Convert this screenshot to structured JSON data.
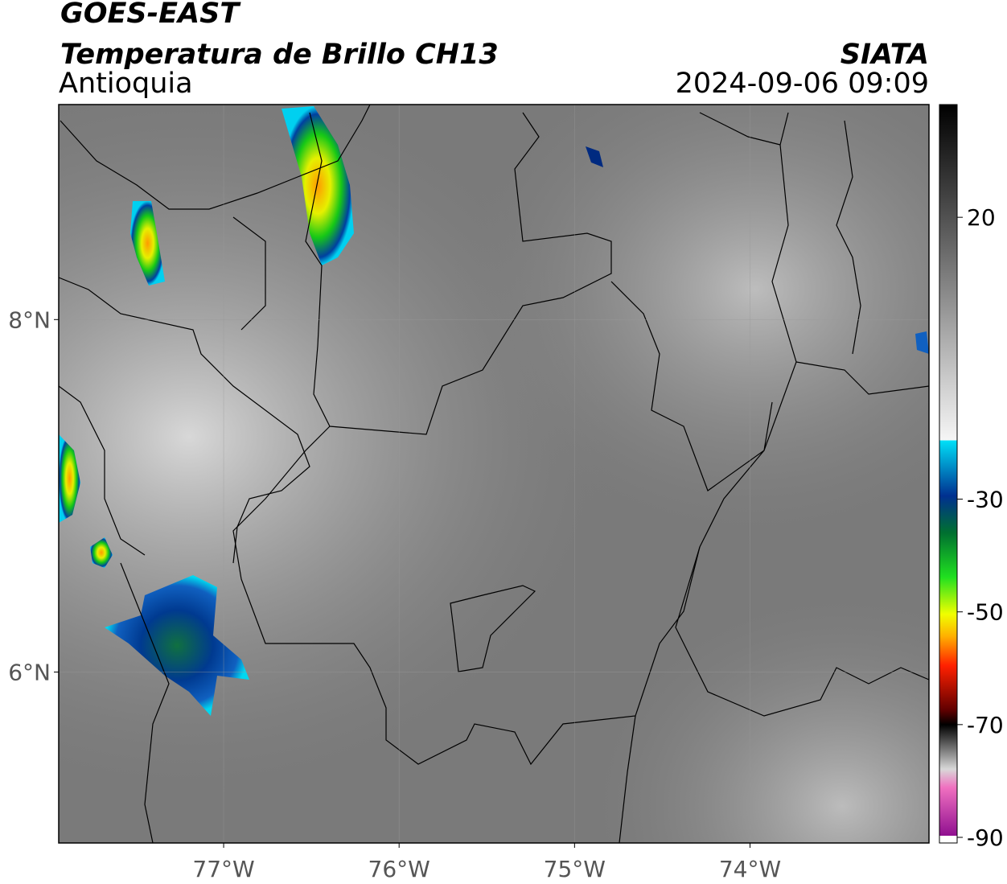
{
  "header": {
    "title": "GOES-EAST",
    "subtitle": "Temperatura de Brillo CH13",
    "region": "Antioquia",
    "agency": "SIATA",
    "datetime": "2024-09-06 09:09"
  },
  "map": {
    "xlim": [
      -77.94,
      -72.98
    ],
    "ylim": [
      5.03,
      9.22
    ],
    "xticks": [
      {
        "value": -77,
        "label": "77°W"
      },
      {
        "value": -76,
        "label": "76°W"
      },
      {
        "value": -75,
        "label": "75°W"
      },
      {
        "value": -74,
        "label": "74°W"
      }
    ],
    "yticks": [
      {
        "value": 6,
        "label": "6°N"
      },
      {
        "value": 8,
        "label": "8°N"
      }
    ],
    "grid": true
  },
  "colorbar": {
    "lim": [
      -91,
      40
    ],
    "ticks": [
      20,
      -30,
      -50,
      -70,
      -90
    ]
  }
}
